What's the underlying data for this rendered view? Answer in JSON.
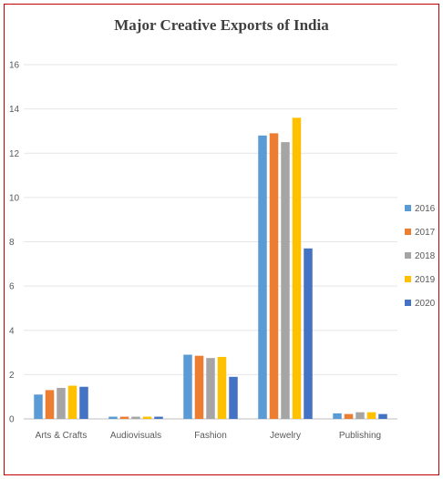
{
  "chart_data": {
    "type": "bar",
    "title": "Major Creative Exports of India",
    "categories": [
      "Arts & Crafts",
      "Audiovisuals",
      "Fashion",
      "Jewelry",
      "Publishing"
    ],
    "series": [
      {
        "name": "2016",
        "color": "#5b9bd5",
        "values": [
          1.1,
          0.1,
          2.9,
          12.8,
          0.25
        ]
      },
      {
        "name": "2017",
        "color": "#ed7d31",
        "values": [
          1.3,
          0.1,
          2.85,
          12.9,
          0.22
        ]
      },
      {
        "name": "2018",
        "color": "#a5a5a5",
        "values": [
          1.4,
          0.1,
          2.75,
          12.5,
          0.3
        ]
      },
      {
        "name": "2019",
        "color": "#ffc000",
        "values": [
          1.5,
          0.1,
          2.8,
          13.6,
          0.3
        ]
      },
      {
        "name": "2020",
        "color": "#4472c4",
        "values": [
          1.45,
          0.1,
          1.9,
          7.7,
          0.22
        ]
      }
    ],
    "ylim": [
      0,
      16
    ],
    "yticks": [
      0,
      2,
      4,
      6,
      8,
      10,
      12,
      14,
      16
    ],
    "grid": true,
    "legend": "right"
  }
}
